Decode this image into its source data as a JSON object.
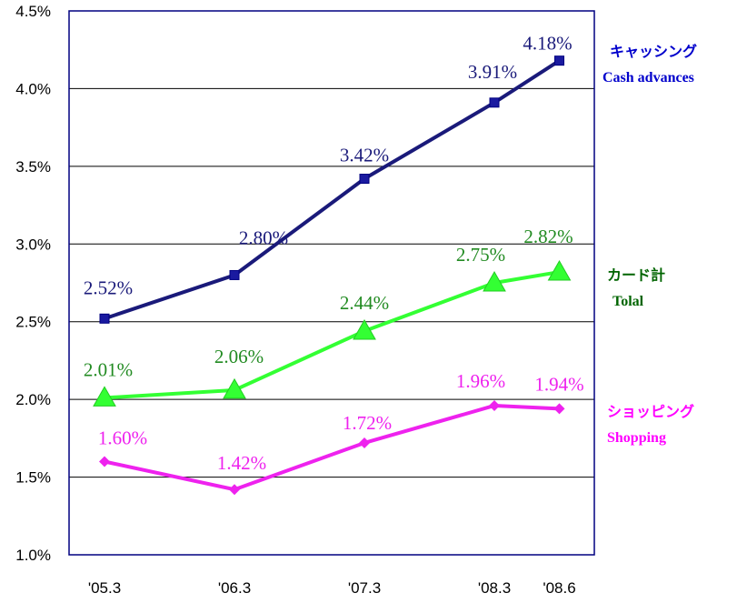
{
  "chart_data": {
    "type": "line",
    "categories": [
      "'05.3",
      "'06.3",
      "'07.3",
      "'08.3",
      "'08.6"
    ],
    "x_positions": [
      0,
      1,
      2,
      3,
      3.5
    ],
    "ylim": [
      1.0,
      4.5
    ],
    "yticks": [
      1.0,
      1.5,
      2.0,
      2.5,
      3.0,
      3.5,
      4.0,
      4.5
    ],
    "ytick_labels": [
      "1.0%",
      "1.5%",
      "2.0%",
      "2.5%",
      "3.0%",
      "3.5%",
      "4.0%",
      "4.5%"
    ],
    "grid": true,
    "legend_position": "right",
    "series": [
      {
        "name": "キャッシング",
        "name_en": "Cash advances",
        "values": [
          2.52,
          2.8,
          3.42,
          3.91,
          4.18
        ],
        "labels": [
          "2.52%",
          "2.80%",
          "3.42%",
          "3.91%",
          "4.18%"
        ],
        "color": "#1a1a7a",
        "label_color": "#1a1a7a",
        "legend_color": "#0000cc",
        "marker": "square"
      },
      {
        "name": "カード計",
        "name_en": "Tolal",
        "values": [
          2.01,
          2.06,
          2.44,
          2.75,
          2.82
        ],
        "labels": [
          "2.01%",
          "2.06%",
          "2.44%",
          "2.75%",
          "2.82%"
        ],
        "color": "#33ff33",
        "label_color": "#228b22",
        "legend_color": "#006400",
        "marker": "triangle"
      },
      {
        "name": "ショッピング",
        "name_en": "Shopping",
        "values": [
          1.6,
          1.42,
          1.72,
          1.96,
          1.94
        ],
        "labels": [
          "1.60%",
          "1.42%",
          "1.72%",
          "1.96%",
          "1.94%"
        ],
        "color": "#ee22ee",
        "label_color": "#ee22ee",
        "legend_color": "#ff00ff",
        "marker": "diamond"
      }
    ]
  }
}
